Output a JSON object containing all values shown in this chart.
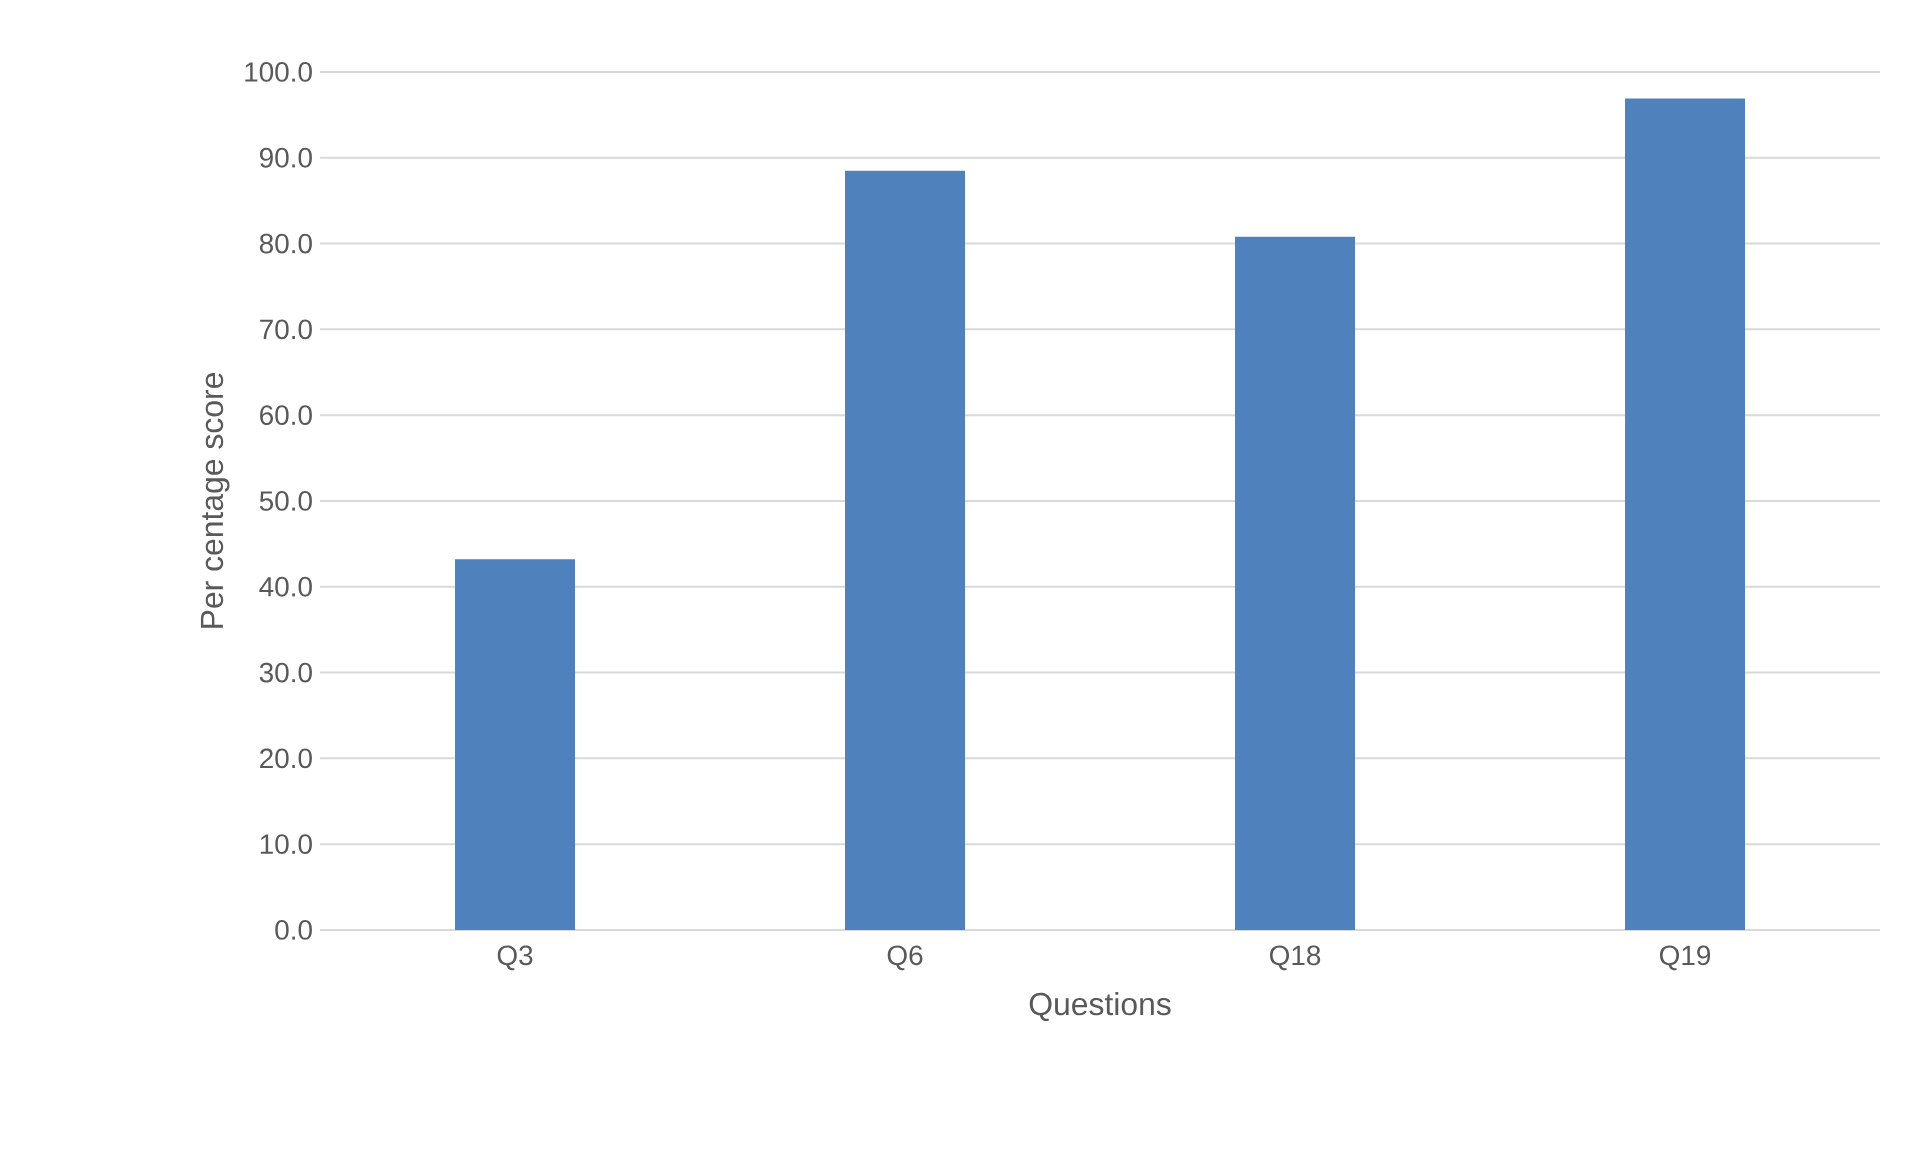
{
  "chart_data": {
    "type": "bar",
    "xlabel": "Questions",
    "ylabel": "Per centage score",
    "categories": [
      "Q3",
      "Q6",
      "Q18",
      "Q19"
    ],
    "values": [
      43.2,
      88.5,
      80.8,
      96.9
    ],
    "color": "#4f81bd",
    "ylim": [
      0,
      100
    ],
    "yticks": [
      {
        "value": 0,
        "label": "0.0"
      },
      {
        "value": 10,
        "label": "10.0"
      },
      {
        "value": 20,
        "label": "20.0"
      },
      {
        "value": 30,
        "label": "30.0"
      },
      {
        "value": 40,
        "label": "40.0"
      },
      {
        "value": 50,
        "label": "50.0"
      },
      {
        "value": 60,
        "label": "60.0"
      },
      {
        "value": 70,
        "label": "70.0"
      },
      {
        "value": 80,
        "label": "80.0"
      },
      {
        "value": 90,
        "label": "90.0"
      },
      {
        "value": 100,
        "label": "100.0"
      }
    ],
    "grid": "y"
  }
}
